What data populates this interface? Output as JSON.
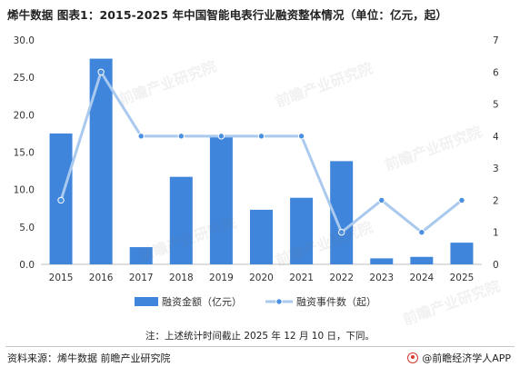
{
  "title": "烯牛数据  图表1：2015-2025 年中国智能电表行业融资整体情况（单位：亿元，起）",
  "note": "注：上述统计时间截止 2025 年 12 月 10 日，下同。",
  "source": "资料来源：烯牛数据 前瞻产业研究院",
  "brand": "@前瞻经济学人APP",
  "watermark": "前瞻产业研究院",
  "colors": {
    "bar": "#3f85dc",
    "line": "#a9c9ee",
    "marker": "#4a8fe0",
    "axis": "#bfbfbf"
  },
  "chart_data": {
    "type": "bar",
    "categories": [
      "2015",
      "2016",
      "2017",
      "2018",
      "2019",
      "2020",
      "2021",
      "2022",
      "2023",
      "2024",
      "2025"
    ],
    "series": [
      {
        "name": "融资金额（亿元）",
        "type": "bar",
        "axis": "left",
        "values": [
          17.5,
          27.5,
          2.3,
          11.7,
          17.3,
          7.3,
          8.9,
          13.8,
          0.8,
          1.0,
          2.9
        ]
      },
      {
        "name": "融资事件数（起）",
        "type": "line",
        "axis": "right",
        "values": [
          2,
          6,
          4,
          4,
          4,
          4,
          4,
          1,
          2,
          1,
          2
        ]
      }
    ],
    "y_left": {
      "min": 0,
      "max": 30,
      "ticks": [
        "0.0",
        "5.0",
        "10.0",
        "15.0",
        "20.0",
        "25.0",
        "30.0"
      ]
    },
    "y_right": {
      "min": 0,
      "max": 7,
      "ticks": [
        "0",
        "1",
        "2",
        "3",
        "4",
        "5",
        "6",
        "7"
      ]
    },
    "legend": "bottom-center",
    "grid": false
  }
}
